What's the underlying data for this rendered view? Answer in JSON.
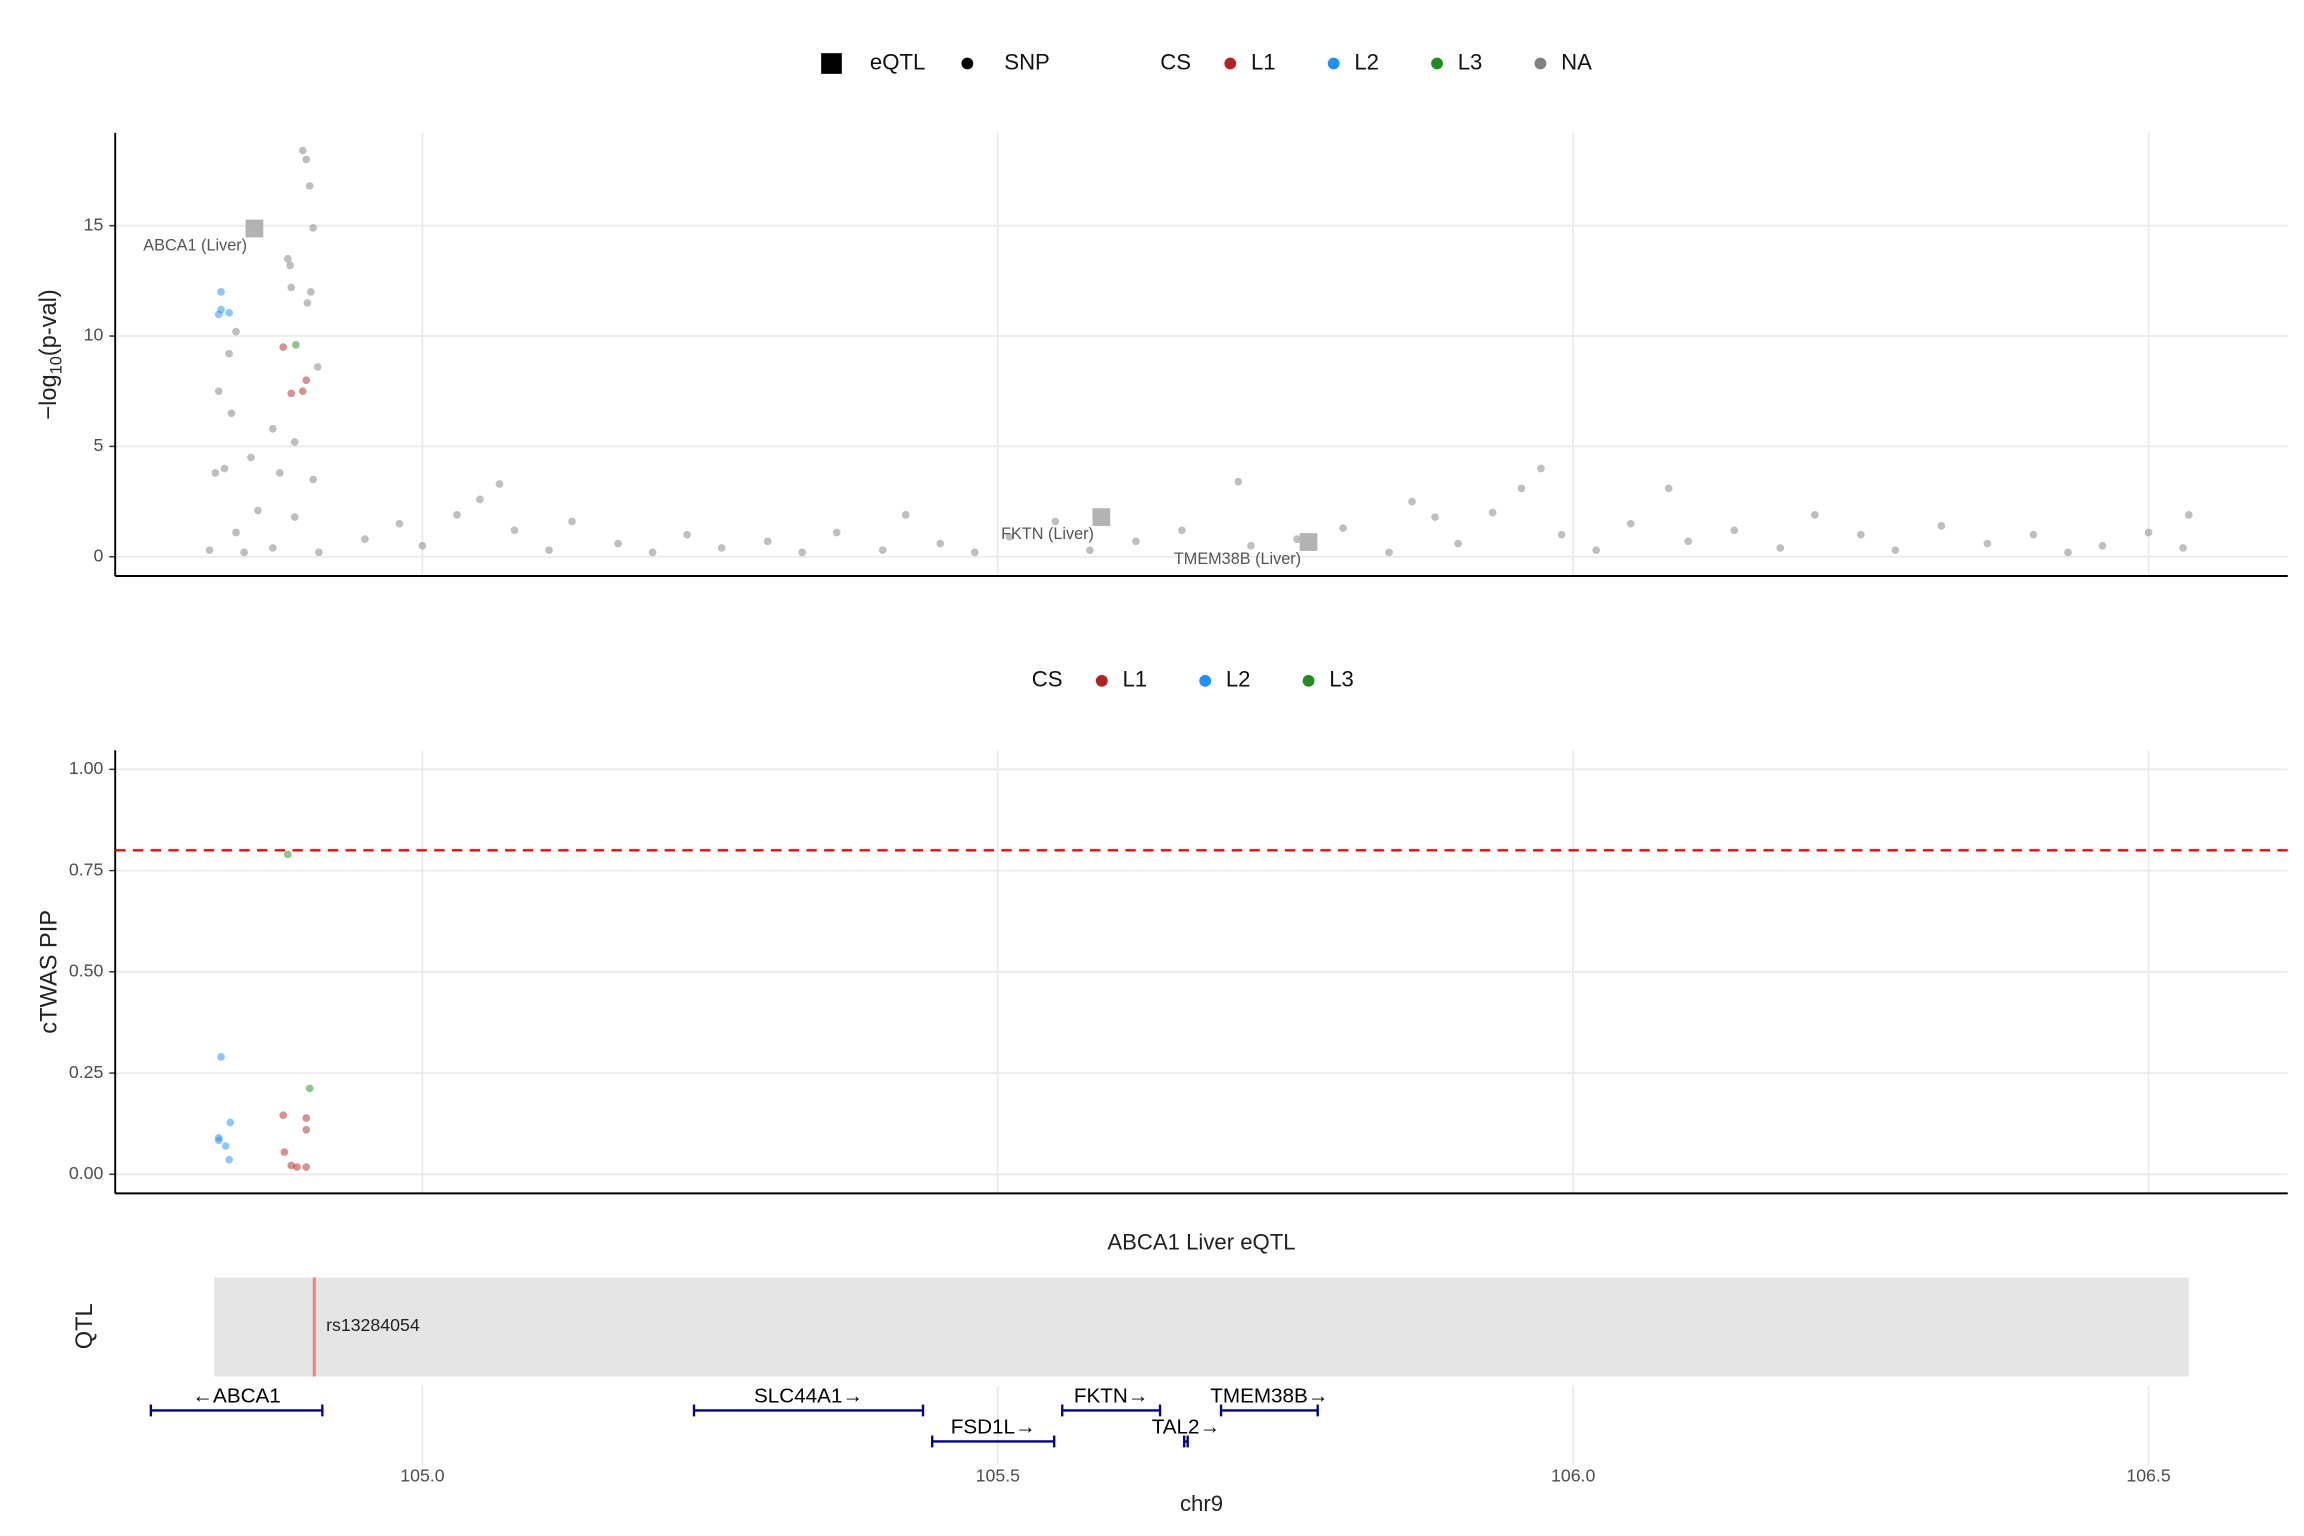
{
  "chart_data": [
    {
      "type": "scatter",
      "ylabel": [
        "−log",
        "10",
        "(p-val)"
      ],
      "legend_title": "CS",
      "snp_label": "SNP",
      "grid": true,
      "xlim": [
        104.733,
        106.621
      ],
      "ylim": [
        -0.87,
        19.2
      ],
      "yticks": [
        0,
        5,
        10,
        15
      ],
      "eqtl": {
        "name": "eQTL",
        "color": "#b3b3b3",
        "labels": [
          "ABCA1 (Liver)",
          "FKTN (Liver)",
          "TMEM38B (Liver)"
        ],
        "x": [
          104.854,
          105.59,
          105.77
        ],
        "values": [
          14.87,
          1.8,
          0.67
        ]
      },
      "series": [
        {
          "name": "L1",
          "color": "#b22222",
          "x": [
            104.879,
            104.899,
            104.886,
            104.896
          ],
          "values": [
            9.5,
            8.0,
            7.4,
            7.5
          ]
        },
        {
          "name": "L2",
          "color": "#1e90ff",
          "x": [
            104.825,
            104.825,
            104.832,
            104.823
          ],
          "values": [
            12.0,
            11.2,
            11.05,
            10.98
          ]
        },
        {
          "name": "L3",
          "color": "#228b22",
          "x": [
            104.89
          ],
          "values": [
            9.6
          ]
        },
        {
          "name": "NA",
          "color": "#808080",
          "x": [
            104.896,
            104.899,
            104.902,
            104.905,
            104.883,
            104.885,
            104.886,
            104.9,
            104.903,
            104.838,
            104.832,
            104.823,
            104.834,
            104.828,
            104.82,
            104.851,
            104.87,
            104.876,
            104.889,
            104.905,
            104.909,
            104.857,
            104.838,
            104.889,
            104.815,
            104.845,
            104.87,
            104.91,
            104.95,
            104.98,
            105.0,
            105.03,
            105.05,
            105.067,
            105.08,
            105.11,
            105.13,
            105.17,
            105.2,
            105.23,
            105.26,
            105.3,
            105.33,
            105.36,
            105.4,
            105.42,
            105.45,
            105.48,
            105.51,
            105.55,
            105.58,
            105.62,
            105.66,
            105.709,
            105.72,
            105.76,
            105.8,
            105.84,
            105.86,
            105.88,
            105.9,
            105.93,
            105.955,
            105.972,
            105.99,
            106.02,
            106.05,
            106.083,
            106.1,
            106.14,
            106.18,
            106.21,
            106.25,
            106.28,
            106.32,
            106.36,
            106.4,
            106.43,
            106.46,
            106.5,
            106.53,
            106.535
          ],
          "values": [
            18.4,
            18.0,
            16.8,
            14.9,
            13.5,
            13.2,
            12.2,
            11.5,
            12.0,
            10.2,
            9.2,
            7.5,
            6.5,
            4.0,
            3.8,
            4.5,
            5.8,
            3.8,
            5.2,
            3.5,
            8.6,
            2.1,
            1.1,
            1.8,
            0.3,
            0.2,
            0.4,
            0.2,
            0.8,
            1.5,
            0.5,
            1.9,
            2.6,
            3.3,
            1.2,
            0.3,
            1.6,
            0.6,
            0.2,
            1.0,
            0.4,
            0.7,
            0.2,
            1.1,
            0.3,
            1.9,
            0.6,
            0.2,
            0.9,
            1.6,
            0.3,
            0.7,
            1.2,
            3.4,
            0.5,
            0.8,
            1.3,
            0.2,
            2.5,
            1.8,
            0.6,
            2.0,
            3.1,
            4.0,
            1.0,
            0.3,
            1.5,
            3.1,
            0.7,
            1.2,
            0.4,
            1.9,
            1.0,
            0.3,
            1.4,
            0.6,
            1.0,
            0.2,
            0.5,
            1.1,
            0.4,
            1.9
          ]
        }
      ]
    },
    {
      "type": "scatter",
      "ylabel": "cTWAS PIP",
      "legend_title": "CS",
      "grid": true,
      "threshold": 0.8,
      "threshold_color": "#ff0000",
      "xlim": [
        104.733,
        106.621
      ],
      "ylim": [
        -0.047,
        1.047
      ],
      "yticks": [
        {
          "value": 0,
          "label": "0.00"
        },
        {
          "value": 0.25,
          "label": "0.25"
        },
        {
          "value": 0.5,
          "label": "0.50"
        },
        {
          "value": 0.75,
          "label": "0.75"
        },
        {
          "value": 1,
          "label": "1.00"
        }
      ],
      "series": [
        {
          "name": "L1",
          "color": "#b22222",
          "x": [
            104.879,
            104.899,
            104.899,
            104.886,
            104.899,
            104.88,
            104.891
          ],
          "values": [
            0.146,
            0.139,
            0.11,
            0.022,
            0.018,
            0.055,
            0.018
          ]
        },
        {
          "name": "L2",
          "color": "#1e90ff",
          "x": [
            104.825,
            104.823,
            104.829,
            104.833,
            104.832,
            104.823
          ],
          "values": [
            0.29,
            0.09,
            0.07,
            0.128,
            0.036,
            0.084
          ]
        },
        {
          "name": "L3",
          "color": "#228b22",
          "x": [
            104.902,
            104.883
          ],
          "values": [
            0.212,
            0.79
          ]
        }
      ]
    },
    {
      "type": "track",
      "title": "ABCA1 Liver eQTL",
      "ylabel": "QTL",
      "xlabel": "chr9",
      "region": [
        104.819,
        106.535
      ],
      "region_color": "#e5e5e5",
      "snp": {
        "name": "rs13284054",
        "x": 104.906,
        "color": "#f08070"
      },
      "xlim": [
        104.733,
        106.621
      ],
      "xticks": [
        {
          "value": 105,
          "label": "105.0"
        },
        {
          "value": 105.5,
          "label": "105.5"
        },
        {
          "value": 106,
          "label": "106.0"
        },
        {
          "value": 106.5,
          "label": "106.5"
        }
      ],
      "gene_color": "#00008b",
      "genes": [
        {
          "label": "←ABCA1",
          "start": 104.764,
          "end": 104.913
        },
        {
          "label": "SLC44A1→",
          "start": 105.236,
          "end": 105.435
        },
        {
          "label": "FSD1L→",
          "start": 105.443,
          "end": 105.549
        },
        {
          "label": "FKTN→",
          "start": 105.556,
          "end": 105.641
        },
        {
          "label": "TAL2→",
          "start": 105.662,
          "end": 105.665
        },
        {
          "label": "TMEM38B→",
          "start": 105.694,
          "end": 105.778
        }
      ]
    }
  ]
}
